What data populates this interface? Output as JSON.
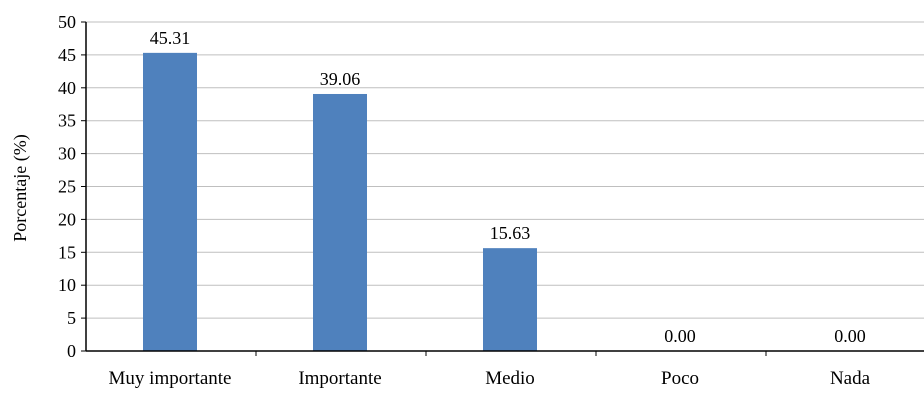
{
  "chart_data": {
    "type": "bar",
    "title": "",
    "xlabel": "",
    "ylabel": "Porcentaje (%)",
    "categories": [
      "Muy importante",
      "Importante",
      "Medio",
      "Poco",
      "Nada"
    ],
    "values": [
      45.31,
      39.06,
      15.63,
      0.0,
      0.0
    ],
    "value_labels": [
      "45.31",
      "39.06",
      "15.63",
      "0.00",
      "0.00"
    ],
    "ylim": [
      0,
      50
    ],
    "yticks": [
      0,
      5,
      10,
      15,
      20,
      25,
      30,
      35,
      40,
      45,
      50
    ],
    "ytick_labels": [
      "0",
      "5",
      "10",
      "15",
      "20",
      "25",
      "30",
      "35",
      "40",
      "45",
      "50"
    ],
    "grid": true,
    "legend": "none",
    "bar_color": "#4f81bd",
    "grid_color": "#bfbfbf",
    "axis_color": "#000000"
  }
}
